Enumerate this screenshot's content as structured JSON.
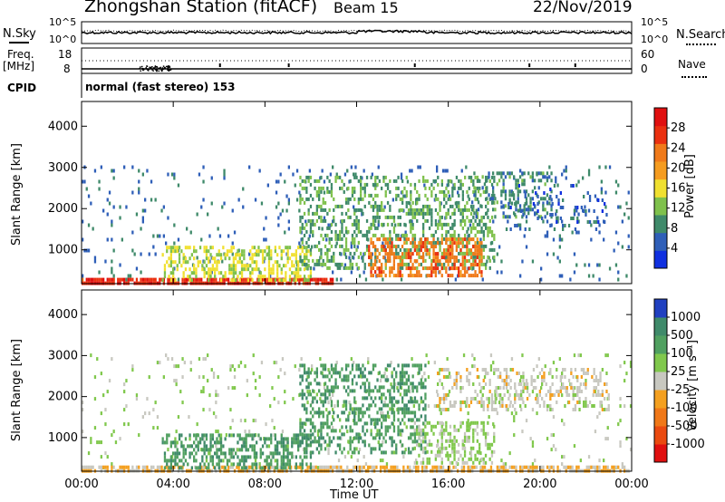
{
  "header": {
    "station": "Zhongshan Station (fitACF)",
    "beam": "Beam 15",
    "date": "22/Nov/2019"
  },
  "strip_labels": {
    "nsky": "N.Sky",
    "nsearch": "N.Search",
    "freq_top": "Freq.",
    "freq_unit": "[MHz]",
    "nave": "Nave",
    "cpid": "CPID",
    "cpid_text": "normal (fast stereo) 153"
  },
  "strip_ticks": {
    "nsky_top": "10^5",
    "nsky_bottom": "10^0",
    "freq_left_top": "18",
    "freq_left_bottom": "8",
    "nave_right_top": "60",
    "nave_right_bottom": "0"
  },
  "axes": {
    "xlabel": "Time UT",
    "ylabel": "Slant Range [km]",
    "x_ticks": [
      "00:00",
      "04:00",
      "08:00",
      "12:00",
      "16:00",
      "20:00",
      "00:00"
    ],
    "y_ticks": [
      "1000",
      "2000",
      "3000",
      "4000"
    ]
  },
  "colorbars": {
    "power": {
      "label": "Power [dB]",
      "ticks": [
        "4",
        "8",
        "12",
        "16",
        "20",
        "24",
        "28"
      ],
      "colors": [
        "#1030e0",
        "#2f5fb8",
        "#3f8a6a",
        "#7fc14c",
        "#f0e030",
        "#f59c20",
        "#f07a1a",
        "#ea3010",
        "#e01010"
      ]
    },
    "velocity": {
      "label": "Velocity [m s⁻¹]",
      "ticks": [
        "1000",
        "500",
        "100",
        "25",
        "-25",
        "-100",
        "-500",
        "-1000"
      ],
      "colors": [
        "#2040c0",
        "#3f8a6a",
        "#50a060",
        "#80c84c",
        "#c8c8c0",
        "#f4a020",
        "#f07818",
        "#ea4a10",
        "#e01010"
      ]
    }
  },
  "chart_data": [
    {
      "type": "line",
      "title": "N.Sky / N.Search",
      "x_range_hours": [
        0,
        24
      ],
      "note_ticks": [
        "10^5",
        "10^0"
      ]
    },
    {
      "type": "scatter",
      "title": "Freq. [MHz] / Nave",
      "ylim_left": [
        8,
        18
      ],
      "ylim_right": [
        0,
        60
      ]
    },
    {
      "type": "heatmap",
      "title": "Power [dB]",
      "x_range_hours": [
        0,
        24
      ],
      "ylim": [
        180,
        4600
      ],
      "colorbar_range": [
        0,
        30
      ],
      "regions": [
        {
          "t0": 0.0,
          "t1": 24.0,
          "r0": 300,
          "r1": 3050,
          "val": 6,
          "density": 0.05
        },
        {
          "t0": 0.0,
          "t1": 11.0,
          "r0": 180,
          "r1": 320,
          "val": 26,
          "density": 0.8
        },
        {
          "t0": 3.5,
          "t1": 10.0,
          "r0": 300,
          "r1": 1100,
          "val": 14,
          "density": 0.45
        },
        {
          "t0": 9.5,
          "t1": 18.0,
          "r0": 600,
          "r1": 2800,
          "val": 10,
          "density": 0.35
        },
        {
          "t0": 12.5,
          "t1": 17.5,
          "r0": 400,
          "r1": 1300,
          "val": 22,
          "density": 0.5
        },
        {
          "t0": 17.0,
          "t1": 20.5,
          "r0": 1800,
          "r1": 2900,
          "val": 8,
          "density": 0.3
        },
        {
          "t0": 18.5,
          "t1": 23.0,
          "r0": 1500,
          "r1": 2600,
          "val": 5,
          "density": 0.12
        }
      ]
    },
    {
      "type": "heatmap",
      "title": "Velocity [m s-1]",
      "x_range_hours": [
        0,
        24
      ],
      "ylim": [
        180,
        4600
      ],
      "colorbar_range": [
        -1000,
        1000
      ],
      "regions": [
        {
          "t0": 0.0,
          "t1": 24.0,
          "r0": 300,
          "r1": 3050,
          "val": -150,
          "density": 0.05
        },
        {
          "t0": 0.0,
          "t1": 24.0,
          "r0": 180,
          "r1": 320,
          "val": 150,
          "density": 0.7
        },
        {
          "t0": 3.5,
          "t1": 10.0,
          "r0": 300,
          "r1": 1100,
          "val": -500,
          "density": 0.45
        },
        {
          "t0": 9.5,
          "t1": 15.0,
          "r0": 600,
          "r1": 2800,
          "val": -500,
          "density": 0.4
        },
        {
          "t0": 14.5,
          "t1": 18.0,
          "r0": 400,
          "r1": 1400,
          "val": -150,
          "density": 0.45
        },
        {
          "t0": 15.5,
          "t1": 23.0,
          "r0": 1700,
          "r1": 2700,
          "val": 0,
          "density": 0.3
        }
      ]
    }
  ]
}
